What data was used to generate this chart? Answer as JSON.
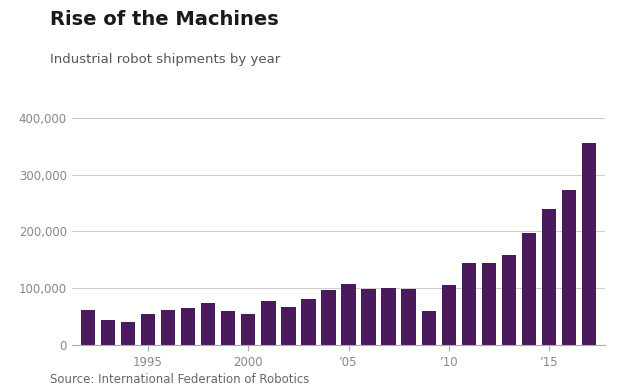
{
  "title": "Rise of the Machines",
  "subtitle": "Industrial robot shipments by year",
  "source": "Source: International Federation of Robotics",
  "bar_color": "#4a1a5c",
  "background_color": "#ffffff",
  "years": [
    1992,
    1993,
    1994,
    1995,
    1996,
    1997,
    1998,
    1999,
    2000,
    2001,
    2002,
    2003,
    2004,
    2005,
    2006,
    2007,
    2008,
    2009,
    2010,
    2011,
    2012,
    2013,
    2014,
    2015,
    2016,
    2017
  ],
  "values": [
    62000,
    45000,
    41000,
    55000,
    62000,
    65000,
    75000,
    60000,
    55000,
    78000,
    67000,
    81000,
    97000,
    107000,
    98000,
    101000,
    99000,
    60000,
    105000,
    145000,
    144000,
    159000,
    198000,
    240000,
    273000,
    355000
  ],
  "xtick_positions": [
    1995,
    2000,
    2005,
    2010,
    2015
  ],
  "xtick_labels": [
    "1995",
    "2000",
    "’05",
    "’10",
    "’15"
  ],
  "ytick_positions": [
    0,
    100000,
    200000,
    300000,
    400000
  ],
  "ytick_labels": [
    "0",
    "100,000",
    "200,000",
    "300,000",
    "400,000"
  ],
  "ylim": [
    0,
    415000
  ],
  "title_fontsize": 14,
  "subtitle_fontsize": 9.5,
  "source_fontsize": 8.5,
  "tick_fontsize": 8.5,
  "grid_color": "#cccccc",
  "axis_color": "#aaaaaa"
}
